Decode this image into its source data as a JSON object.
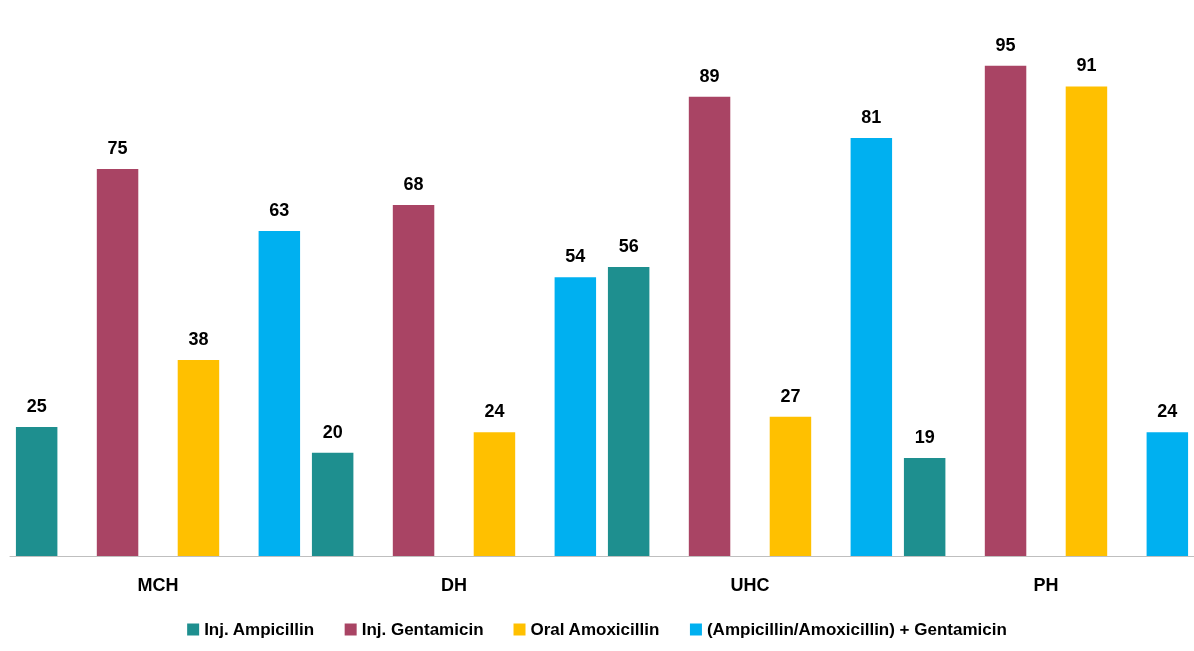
{
  "chart_data": {
    "type": "bar",
    "categories": [
      "MCH",
      "DH",
      "UHC",
      "PH"
    ],
    "series": [
      {
        "name": "Inj. Ampicillin",
        "color": "#1e8f8f",
        "values": [
          25,
          20,
          56,
          19
        ]
      },
      {
        "name": "Inj. Gentamicin",
        "color": "#a94464",
        "values": [
          75,
          68,
          89,
          95
        ]
      },
      {
        "name": "Oral Amoxicillin",
        "color": "#ffc000",
        "values": [
          38,
          24,
          27,
          91
        ]
      },
      {
        "name": "(Ampicillin/Amoxicillin) + Gentamicin",
        "color": "#00b0f0",
        "values": [
          63,
          54,
          81,
          24
        ]
      }
    ],
    "data_labels": true,
    "legend": "bottom",
    "tick_labels": "x"
  }
}
